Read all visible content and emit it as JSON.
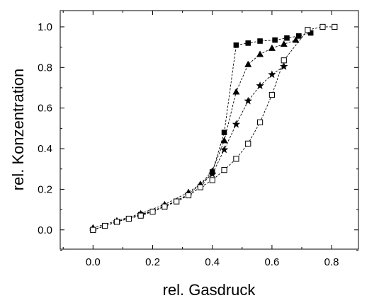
{
  "chart_data": {
    "type": "scatter",
    "title": "",
    "xlabel": "rel. Gasdruck",
    "ylabel": "rel. Konzentration",
    "xlim": [
      -0.11,
      0.89
    ],
    "ylim": [
      -0.095,
      1.08
    ],
    "xticks": [
      0.0,
      0.2,
      0.4,
      0.6,
      0.8
    ],
    "xtick_labels": [
      "0.0",
      "0.2",
      "0.4",
      "0.6",
      "0.8"
    ],
    "yticks": [
      0.0,
      0.2,
      0.4,
      0.6,
      0.8,
      1.0
    ],
    "ytick_labels": [
      "0.0",
      "0.2",
      "0.4",
      "0.6",
      "0.8",
      "1.0"
    ],
    "grid": false,
    "line_style": "dashed",
    "series": [
      {
        "marker": "square-filled",
        "x": [
          0.0,
          0.04,
          0.08,
          0.12,
          0.16,
          0.2,
          0.24,
          0.28,
          0.32,
          0.36,
          0.4,
          0.44,
          0.48,
          0.52,
          0.56,
          0.61,
          0.65,
          0.69,
          0.73
        ],
        "y": [
          0.0,
          0.02,
          0.04,
          0.055,
          0.075,
          0.09,
          0.115,
          0.14,
          0.17,
          0.21,
          0.285,
          0.48,
          0.91,
          0.92,
          0.93,
          0.935,
          0.945,
          0.955,
          0.97
        ]
      },
      {
        "marker": "triangle-filled",
        "x": [
          0.0,
          0.08,
          0.16,
          0.24,
          0.32,
          0.36,
          0.4,
          0.44,
          0.48,
          0.52,
          0.56,
          0.6,
          0.64,
          0.68
        ],
        "y": [
          0.01,
          0.045,
          0.08,
          0.125,
          0.185,
          0.225,
          0.29,
          0.44,
          0.68,
          0.815,
          0.865,
          0.895,
          0.915,
          0.935
        ]
      },
      {
        "marker": "star-filled",
        "x": [
          0.0,
          0.08,
          0.16,
          0.24,
          0.32,
          0.4,
          0.44,
          0.48,
          0.52,
          0.56,
          0.6,
          0.64
        ],
        "y": [
          0.0,
          0.04,
          0.075,
          0.115,
          0.175,
          0.275,
          0.395,
          0.52,
          0.635,
          0.71,
          0.765,
          0.805
        ]
      },
      {
        "marker": "square-open",
        "x": [
          0.0,
          0.04,
          0.08,
          0.12,
          0.16,
          0.2,
          0.24,
          0.28,
          0.32,
          0.36,
          0.4,
          0.44,
          0.48,
          0.52,
          0.56,
          0.6,
          0.64,
          0.72,
          0.77,
          0.81
        ],
        "y": [
          0.0,
          0.02,
          0.04,
          0.055,
          0.07,
          0.09,
          0.115,
          0.14,
          0.17,
          0.21,
          0.245,
          0.295,
          0.35,
          0.425,
          0.53,
          0.665,
          0.835,
          0.985,
          1.0,
          1.0
        ]
      }
    ]
  }
}
